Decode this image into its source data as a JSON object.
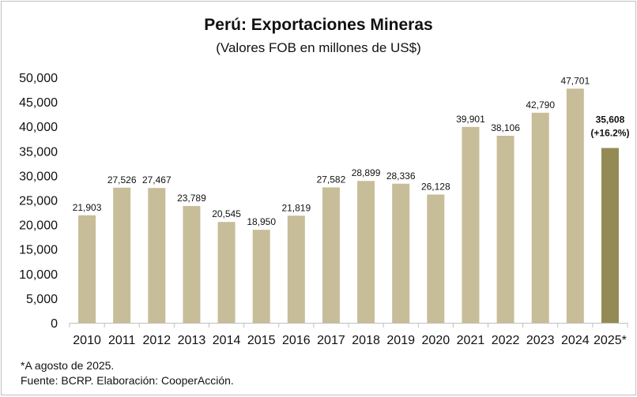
{
  "colors": {
    "bar": "#c8bd99",
    "bar_highlight": "#948a54",
    "axis": "#bfbfbf",
    "text": "#111111"
  },
  "chart_data": {
    "type": "bar",
    "title": "Perú: Exportaciones Mineras",
    "subtitle": "(Valores FOB en millones de US$)",
    "xlabel": "",
    "ylabel": "",
    "ylim": [
      0,
      50000
    ],
    "yticks": [
      0,
      5000,
      10000,
      15000,
      20000,
      25000,
      30000,
      35000,
      40000,
      45000,
      50000
    ],
    "ytick_labels": [
      "0",
      "5,000",
      "10,000",
      "15,000",
      "20,000",
      "25,000",
      "30,000",
      "35,000",
      "40,000",
      "45,000",
      "50,000"
    ],
    "grid": false,
    "categories": [
      "2010",
      "2011",
      "2012",
      "2013",
      "2014",
      "2015",
      "2016",
      "2017",
      "2018",
      "2019",
      "2020",
      "2021",
      "2022",
      "2023",
      "2024",
      "2025*"
    ],
    "values": [
      21903,
      27526,
      27467,
      23789,
      20545,
      18950,
      21819,
      27582,
      28899,
      28336,
      26128,
      39901,
      38106,
      42790,
      47701,
      35608
    ],
    "data_labels": [
      "21,903",
      "27,526",
      "27,467",
      "23,789",
      "20,545",
      "18,950",
      "21,819",
      "27,582",
      "28,899",
      "28,336",
      "26,128",
      "39,901",
      "38,106",
      "42,790",
      "47,701",
      "35,608"
    ],
    "highlight_index": 15,
    "highlight_note": "(+16.2%)"
  },
  "footnotes": {
    "note": "*A agosto de 2025.",
    "source": "Fuente: BCRP. Elaboración: CooperAcción."
  }
}
